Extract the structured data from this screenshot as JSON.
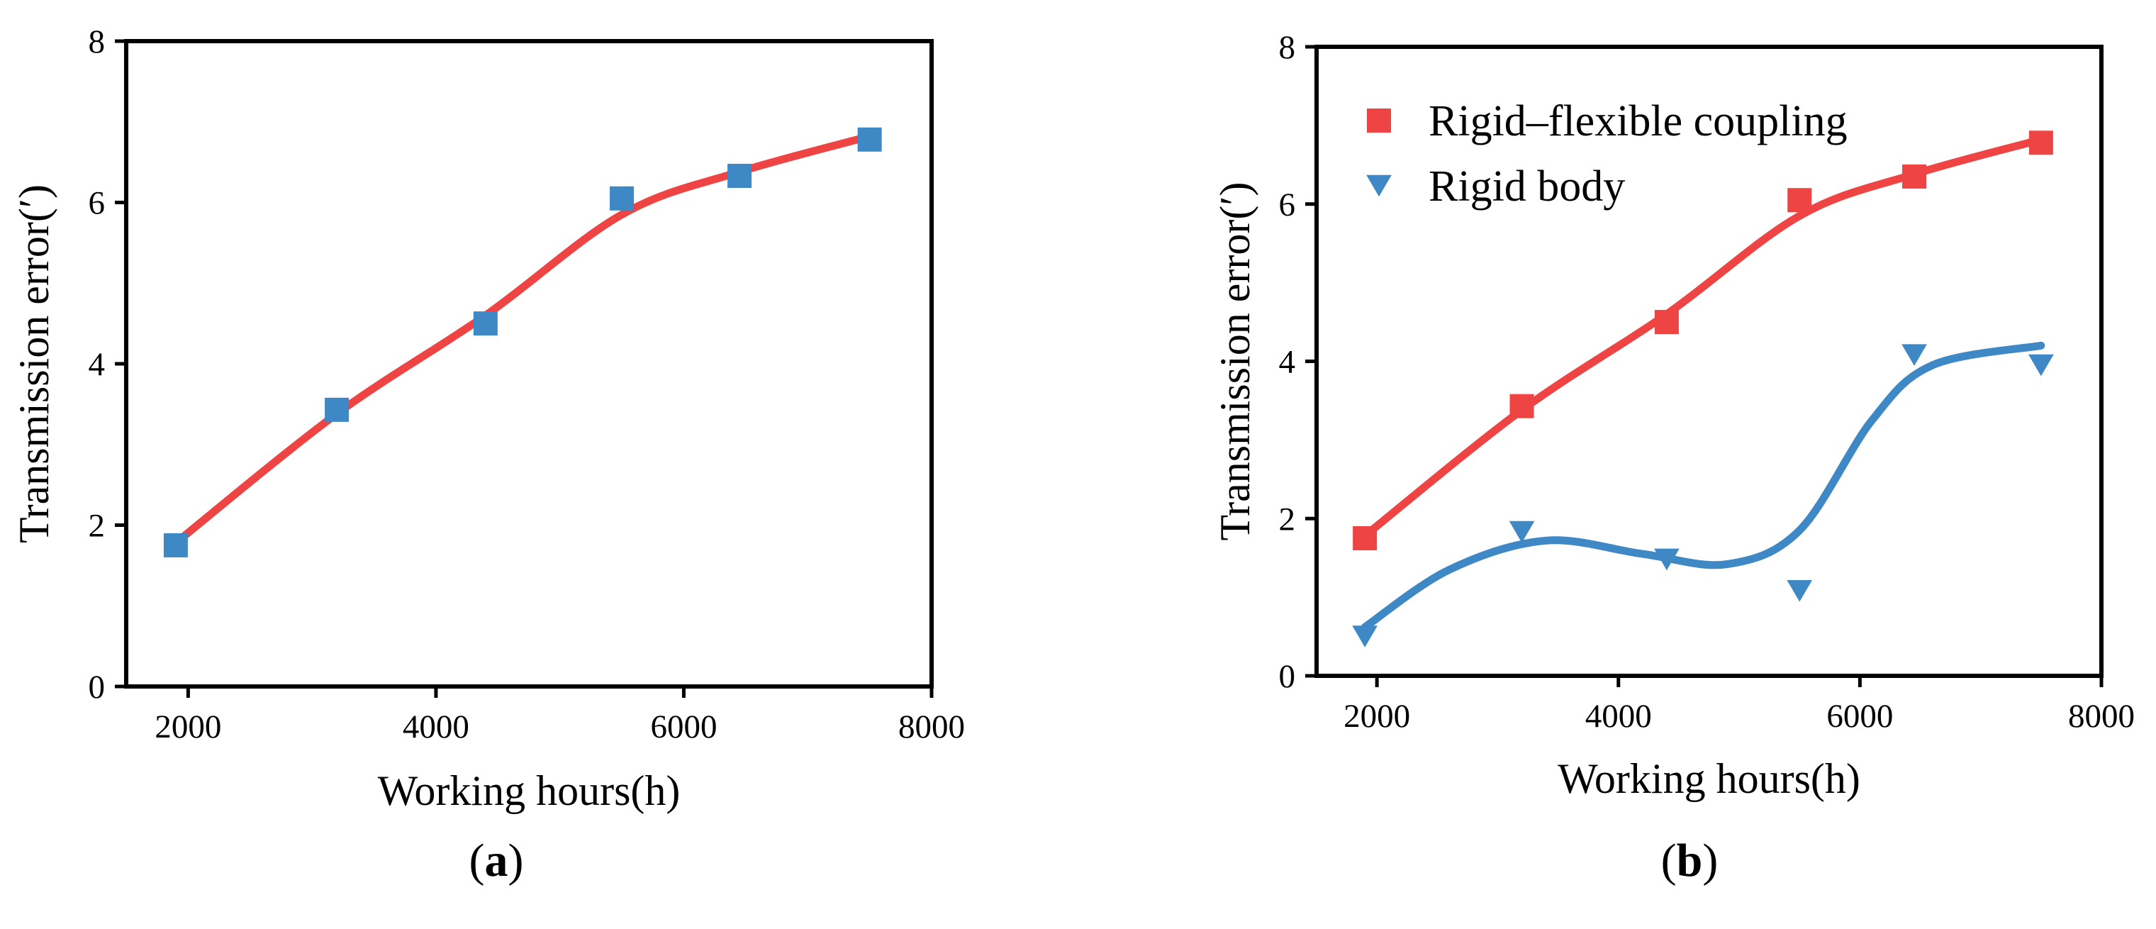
{
  "colors": {
    "rigid_flexible_line": "#ee4444",
    "rigid_flexible_marker_a": "#3e88c6",
    "rigid_flexible_marker_b": "#ee4444",
    "rigid_body": "#3e88c6",
    "axis": "#000000"
  },
  "chart_data": [
    {
      "panel": "a",
      "caption": {
        "open": "(",
        "letter": "a",
        "close": ")"
      },
      "type": "line",
      "xlabel": "Working hours(h)",
      "ylabel": "Transmission error(′)",
      "xlim": [
        1500,
        8000
      ],
      "ylim": [
        0,
        8
      ],
      "xticks": [
        2000,
        4000,
        6000,
        8000
      ],
      "yticks": [
        0,
        2,
        4,
        6,
        8
      ],
      "grid": false,
      "legend": null,
      "series": [
        {
          "marker": "square",
          "color_key": "rigid_flexible_marker_a",
          "line_color_key": "rigid_flexible_line",
          "x": [
            1900,
            3200,
            4400,
            5500,
            6450,
            7500
          ],
          "y": [
            1.75,
            3.43,
            4.5,
            6.05,
            6.33,
            6.78
          ],
          "fit": [
            [
              1900,
              1.78
            ],
            [
              3200,
              3.38
            ],
            [
              4400,
              4.6
            ],
            [
              5500,
              5.85
            ],
            [
              6450,
              6.38
            ],
            [
              7500,
              6.82
            ]
          ]
        }
      ]
    },
    {
      "panel": "b",
      "caption": {
        "open": "(",
        "letter": "b",
        "close": ")"
      },
      "type": "line",
      "xlabel": "Working hours(h)",
      "ylabel": "Transmission error(′)",
      "xlim": [
        1500,
        8000
      ],
      "ylim": [
        0,
        8
      ],
      "xticks": [
        2000,
        4000,
        6000,
        8000
      ],
      "yticks": [
        0,
        2,
        4,
        6,
        8
      ],
      "grid": false,
      "legend": "top-left",
      "series": [
        {
          "name": "Rigid–flexible coupling",
          "marker": "square",
          "color_key": "rigid_flexible_marker_b",
          "line_color_key": "rigid_flexible_line",
          "x": [
            1900,
            3200,
            4400,
            5500,
            6450,
            7500
          ],
          "y": [
            1.75,
            3.43,
            4.5,
            6.05,
            6.35,
            6.78
          ],
          "fit": [
            [
              1900,
              1.78
            ],
            [
              3200,
              3.38
            ],
            [
              4400,
              4.6
            ],
            [
              5500,
              5.85
            ],
            [
              6450,
              6.38
            ],
            [
              7500,
              6.82
            ]
          ]
        },
        {
          "name": "Rigid body",
          "marker": "triangle-down",
          "color_key": "rigid_body",
          "line_color_key": "rigid_body",
          "x": [
            1900,
            3200,
            4400,
            5500,
            6450,
            7500
          ],
          "y": [
            0.5,
            1.83,
            1.48,
            1.08,
            4.08,
            3.95
          ],
          "fit": [
            [
              1900,
              0.62
            ],
            [
              2600,
              1.35
            ],
            [
              3400,
              1.72
            ],
            [
              4200,
              1.55
            ],
            [
              4900,
              1.42
            ],
            [
              5500,
              1.85
            ],
            [
              6100,
              3.25
            ],
            [
              6600,
              3.95
            ],
            [
              7500,
              4.2
            ]
          ]
        }
      ]
    }
  ]
}
